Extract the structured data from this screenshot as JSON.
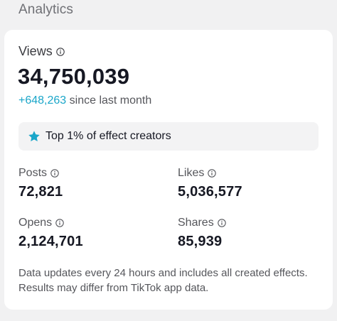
{
  "section": {
    "title": "Analytics"
  },
  "views": {
    "label": "Views",
    "value": "34,750,039",
    "delta": "+648,263",
    "delta_suffix": "since last month"
  },
  "badge": {
    "icon": "star-icon",
    "text": "Top 1% of effect creators"
  },
  "stats": {
    "posts": {
      "label": "Posts",
      "value": "72,821"
    },
    "likes": {
      "label": "Likes",
      "value": "5,036,577"
    },
    "opens": {
      "label": "Opens",
      "value": "2,124,701"
    },
    "shares": {
      "label": "Shares",
      "value": "85,939"
    }
  },
  "footnote": "Data updates every 24 hours and includes all created effects. Results may differ from TikTok app data.",
  "colors": {
    "accent": "#1aa6c9",
    "text": "#161823",
    "muted": "#55565b"
  }
}
